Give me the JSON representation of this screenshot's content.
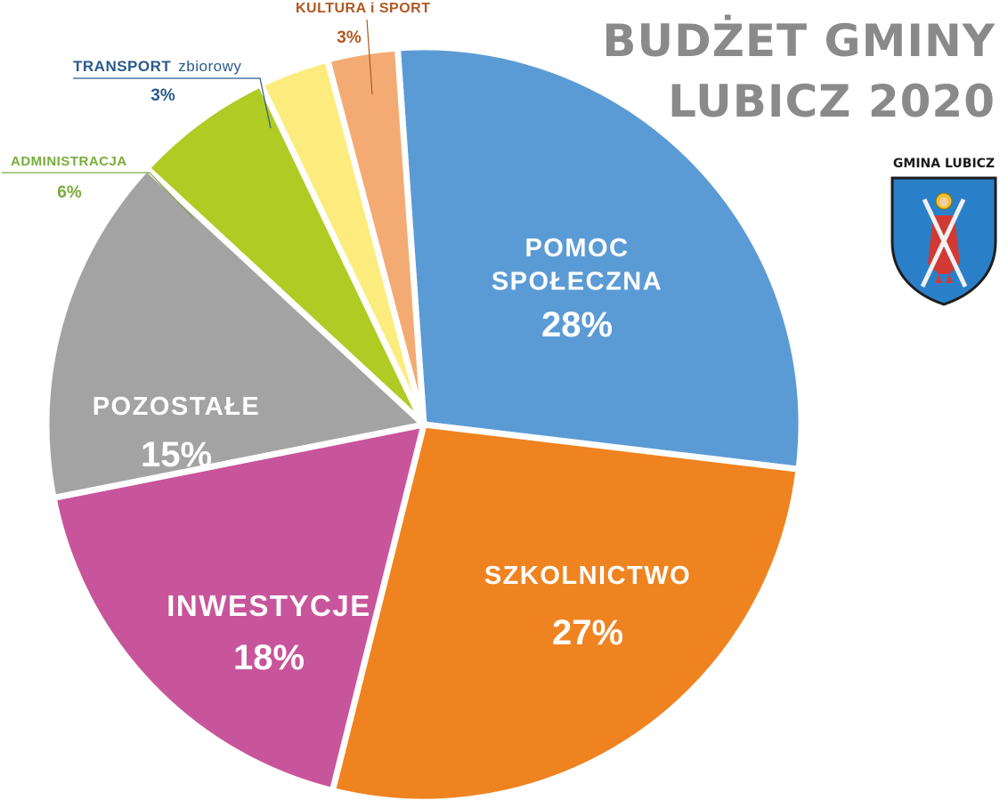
{
  "title_line1": "BUDŻET GMINY",
  "title_line2": "LUBICZ 2020",
  "crest_label": "GMINA LUBICZ",
  "chart_data": {
    "type": "pie",
    "title": "BUDŻET GMINY LUBICZ 2020",
    "start_angle_deg": -4,
    "direction": "clockwise",
    "slices": [
      {
        "id": "pomoc",
        "label": [
          "POMOC",
          "SPOŁECZNA"
        ],
        "value": 28,
        "value_label": "28%",
        "color": "#5b9bd5",
        "label_position": "inside"
      },
      {
        "id": "szkol",
        "label": [
          "SZKOLNICTWO"
        ],
        "value": 27,
        "value_label": "27%",
        "color": "#ef8320",
        "label_position": "inside"
      },
      {
        "id": "inwest",
        "label": [
          "INWESTYCJE"
        ],
        "value": 18,
        "value_label": "18%",
        "color": "#c8559b",
        "label_position": "inside"
      },
      {
        "id": "pozost",
        "label": [
          "POZOSTAŁE"
        ],
        "value": 15,
        "value_label": "15%",
        "color": "#a3a3a3",
        "label_position": "inside"
      },
      {
        "id": "admin",
        "label": [
          "ADMINISTRACJA"
        ],
        "value": 6,
        "value_label": "6%",
        "color": "#afcb24",
        "label_color": "#7aab3a",
        "label_position": "outside"
      },
      {
        "id": "transp",
        "label": [
          "TRANSPORT",
          "zbiorowy"
        ],
        "value": 3,
        "value_label": "3%",
        "color": "#fcec7e",
        "label_color": "#2b5a8c",
        "label_position": "outside"
      },
      {
        "id": "kultura",
        "label": [
          "KULTURA i SPORT"
        ],
        "value": 3,
        "value_label": "3%",
        "color": "#f3ab73",
        "label_color": "#b0571f",
        "label_position": "outside"
      }
    ]
  }
}
